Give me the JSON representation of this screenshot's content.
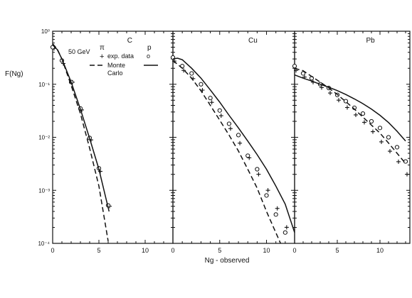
{
  "chart_data": {
    "type": "scatter",
    "ylabel": "F(Ng)",
    "xlabel": "Ng - observed",
    "y_scale": "log",
    "ylim": [
      0.0001,
      1
    ],
    "y_tick_labels": [
      "10⁻⁴",
      "10⁻³",
      "10⁻²",
      "10⁻¹",
      "10⁰"
    ],
    "legend": {
      "energy": "50 GeV",
      "col_pi": "π",
      "col_p": "p",
      "exp_label": "exp. data",
      "exp_plus": "+",
      "exp_circle": "o",
      "mc_label_1": "Monte",
      "mc_label_2": "Carlo",
      "placement": "top-right of first panel"
    },
    "panels": [
      {
        "label": "C",
        "xlim": [
          0,
          13
        ],
        "x_tick_labels": [
          "0",
          "5",
          "10"
        ],
        "series": [
          {
            "marker": "plus",
            "x": [
              0,
              1,
              2,
              3,
              4,
              5,
              6
            ],
            "y": [
              0.52,
              0.27,
              0.12,
              0.036,
              0.0098,
              0.0025,
              0.00055
            ]
          },
          {
            "marker": "circle",
            "x": [
              0,
              1,
              2,
              3,
              4,
              5,
              6
            ],
            "y": [
              0.5,
              0.28,
              0.11,
              0.035,
              0.0097,
              0.0026,
              0.00052
            ]
          },
          {
            "marker": "solid",
            "x": [
              0,
              0.5,
              1,
              2,
              3,
              4,
              5,
              6.1
            ],
            "y": [
              0.55,
              0.45,
              0.3,
              0.11,
              0.034,
              0.0095,
              0.0025,
              0.0004
            ]
          },
          {
            "marker": "dashed",
            "x": [
              0,
              0.5,
              1,
              2,
              3,
              4,
              5,
              6
            ],
            "y": [
              0.58,
              0.46,
              0.3,
              0.095,
              0.028,
              0.0062,
              0.0012,
              0.00011
            ]
          }
        ]
      },
      {
        "label": "Cu",
        "xlim": [
          0,
          13
        ],
        "x_tick_labels": [
          "0",
          "5",
          "10"
        ],
        "series": [
          {
            "marker": "plus",
            "x": [
              0,
              1,
              2,
              3,
              4,
              5,
              6,
              7,
              8,
              9,
              10,
              11,
              12
            ],
            "y": [
              0.3,
              0.2,
              0.14,
              0.085,
              0.05,
              0.028,
              0.016,
              0.0085,
              0.0045,
              0.0022,
              0.0011,
              0.0005,
              0.00022
            ]
          },
          {
            "marker": "circle",
            "x": [
              0,
              1,
              2,
              3,
              4,
              5,
              6,
              7,
              8,
              9,
              10,
              11,
              12
            ],
            "y": [
              0.32,
              0.22,
              0.16,
              0.1,
              0.055,
              0.032,
              0.018,
              0.011,
              0.0045,
              0.0025,
              0.0008,
              0.00035,
              0.00016
            ]
          },
          {
            "marker": "solid",
            "x": [
              0,
              0.5,
              1,
              2,
              3,
              4,
              5,
              6,
              7,
              8,
              9,
              10,
              11,
              12,
              13
            ],
            "y": [
              0.3,
              0.31,
              0.29,
              0.2,
              0.13,
              0.078,
              0.046,
              0.026,
              0.015,
              0.0085,
              0.0047,
              0.0025,
              0.0012,
              0.00055,
              0.00016
            ]
          },
          {
            "marker": "dashed",
            "x": [
              0,
              1,
              2,
              3,
              4,
              5,
              6,
              7,
              8,
              9,
              10,
              11.5
            ],
            "y": [
              0.28,
              0.2,
              0.13,
              0.075,
              0.04,
              0.021,
              0.011,
              0.0055,
              0.0025,
              0.0011,
              0.0004,
              0.0001
            ]
          }
        ]
      },
      {
        "label": "Pb",
        "xlim": [
          0,
          13.5
        ],
        "x_tick_labels": [
          "0",
          "5",
          "10"
        ],
        "series": [
          {
            "marker": "plus",
            "x": [
              0,
              1,
              2,
              3,
              4,
              5,
              6,
              7,
              8,
              9,
              10,
              11,
              12,
              13
            ],
            "y": [
              0.2,
              0.15,
              0.12,
              0.095,
              0.075,
              0.055,
              0.04,
              0.029,
              0.021,
              0.014,
              0.009,
              0.006,
              0.0038,
              0.0022
            ]
          },
          {
            "marker": "circle",
            "x": [
              0,
              1,
              2,
              3,
              4,
              5,
              6,
              7,
              8,
              9,
              10,
              11,
              12,
              13
            ],
            "y": [
              0.22,
              0.16,
              0.13,
              0.1,
              0.085,
              0.063,
              0.048,
              0.036,
              0.028,
              0.02,
              0.015,
              0.01,
              0.0065,
              0.0035
            ]
          },
          {
            "marker": "solid",
            "x": [
              0,
              1,
              2,
              3,
              4,
              5,
              6,
              7,
              8,
              9,
              10,
              11,
              12,
              13
            ],
            "y": [
              0.15,
              0.13,
              0.115,
              0.1,
              0.088,
              0.076,
              0.064,
              0.053,
              0.043,
              0.034,
              0.026,
              0.019,
              0.013,
              0.0085
            ]
          },
          {
            "marker": "dashed",
            "x": [
              0,
              1,
              2,
              3,
              4,
              5,
              6,
              7,
              8,
              9,
              10,
              11,
              12,
              13
            ],
            "y": [
              0.2,
              0.18,
              0.14,
              0.11,
              0.085,
              0.064,
              0.047,
              0.034,
              0.024,
              0.017,
              0.012,
              0.0078,
              0.005,
              0.0032
            ]
          }
        ]
      }
    ]
  }
}
